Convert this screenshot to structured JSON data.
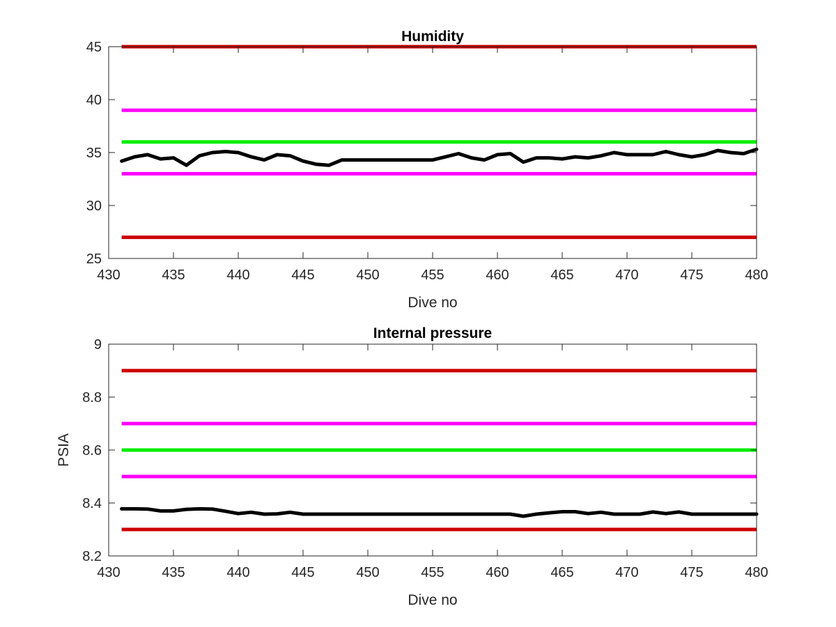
{
  "chart_data": [
    {
      "type": "line",
      "title": "Humidity",
      "xlabel": "Dive no",
      "ylabel": "",
      "xlim": [
        430,
        480
      ],
      "ylim": [
        25,
        45
      ],
      "xticks": [
        "430",
        "435",
        "440",
        "445",
        "450",
        "455",
        "460",
        "465",
        "470",
        "475",
        "480"
      ],
      "yticks": [
        "25",
        "30",
        "35",
        "40",
        "45"
      ],
      "grid": false,
      "series": [
        {
          "color": "#000000",
          "x": [
            431,
            432,
            433,
            434,
            435,
            436,
            437,
            438,
            439,
            440,
            441,
            442,
            443,
            444,
            445,
            446,
            447,
            448,
            449,
            450,
            451,
            452,
            453,
            454,
            455,
            456,
            457,
            458,
            459,
            460,
            461,
            462,
            463,
            464,
            465,
            466,
            467,
            468,
            469,
            470,
            471,
            472,
            473,
            474,
            475,
            476,
            477,
            478,
            479,
            480
          ],
          "values": [
            34.2,
            34.6,
            34.8,
            34.4,
            34.5,
            33.8,
            34.7,
            35.0,
            35.1,
            35.0,
            34.6,
            34.3,
            34.8,
            34.7,
            34.2,
            33.9,
            33.8,
            34.3,
            34.3,
            34.3,
            34.3,
            34.3,
            34.3,
            34.3,
            34.3,
            34.6,
            34.9,
            34.5,
            34.3,
            34.8,
            34.9,
            34.1,
            34.5,
            34.5,
            34.4,
            34.6,
            34.5,
            34.7,
            35.0,
            34.8,
            34.8,
            34.8,
            35.1,
            34.8,
            34.6,
            34.8,
            35.2,
            35.0,
            34.9,
            35.3
          ]
        }
      ],
      "reference_lines": [
        {
          "color": "#cc0000",
          "value": 45
        },
        {
          "color": "#ff00ff",
          "value": 39
        },
        {
          "color": "#00ee00",
          "value": 36
        },
        {
          "color": "#ff00ff",
          "value": 33
        },
        {
          "color": "#cc0000",
          "value": 27
        }
      ]
    },
    {
      "type": "line",
      "title": "Internal pressure",
      "xlabel": "Dive no",
      "ylabel": "PSIA",
      "xlim": [
        430,
        480
      ],
      "ylim": [
        8.2,
        9
      ],
      "xticks": [
        "430",
        "435",
        "440",
        "445",
        "450",
        "455",
        "460",
        "465",
        "470",
        "475",
        "480"
      ],
      "yticks": [
        "8.2",
        "8.4",
        "8.6",
        "8.8",
        "9"
      ],
      "grid": false,
      "series": [
        {
          "color": "#000000",
          "x": [
            431,
            432,
            433,
            434,
            435,
            436,
            437,
            438,
            439,
            440,
            441,
            442,
            443,
            444,
            445,
            446,
            447,
            448,
            449,
            450,
            451,
            452,
            453,
            454,
            455,
            456,
            457,
            458,
            459,
            460,
            461,
            462,
            463,
            464,
            465,
            466,
            467,
            468,
            469,
            470,
            471,
            472,
            473,
            474,
            475,
            476,
            477,
            478,
            479,
            480
          ],
          "values": [
            8.378,
            8.378,
            8.377,
            8.37,
            8.37,
            8.376,
            8.378,
            8.377,
            8.369,
            8.36,
            8.365,
            8.358,
            8.359,
            8.365,
            8.358,
            8.358,
            8.358,
            8.358,
            8.358,
            8.358,
            8.358,
            8.358,
            8.358,
            8.358,
            8.358,
            8.358,
            8.358,
            8.358,
            8.358,
            8.358,
            8.358,
            8.35,
            8.358,
            8.363,
            8.367,
            8.367,
            8.36,
            8.365,
            8.358,
            8.358,
            8.358,
            8.366,
            8.36,
            8.366,
            8.358,
            8.358,
            8.358,
            8.358,
            8.358,
            8.358
          ]
        }
      ],
      "reference_lines": [
        {
          "color": "#cc0000",
          "value": 8.9
        },
        {
          "color": "#ff00ff",
          "value": 8.7
        },
        {
          "color": "#00ee00",
          "value": 8.6
        },
        {
          "color": "#ff00ff",
          "value": 8.5
        },
        {
          "color": "#cc0000",
          "value": 8.3
        }
      ]
    }
  ]
}
